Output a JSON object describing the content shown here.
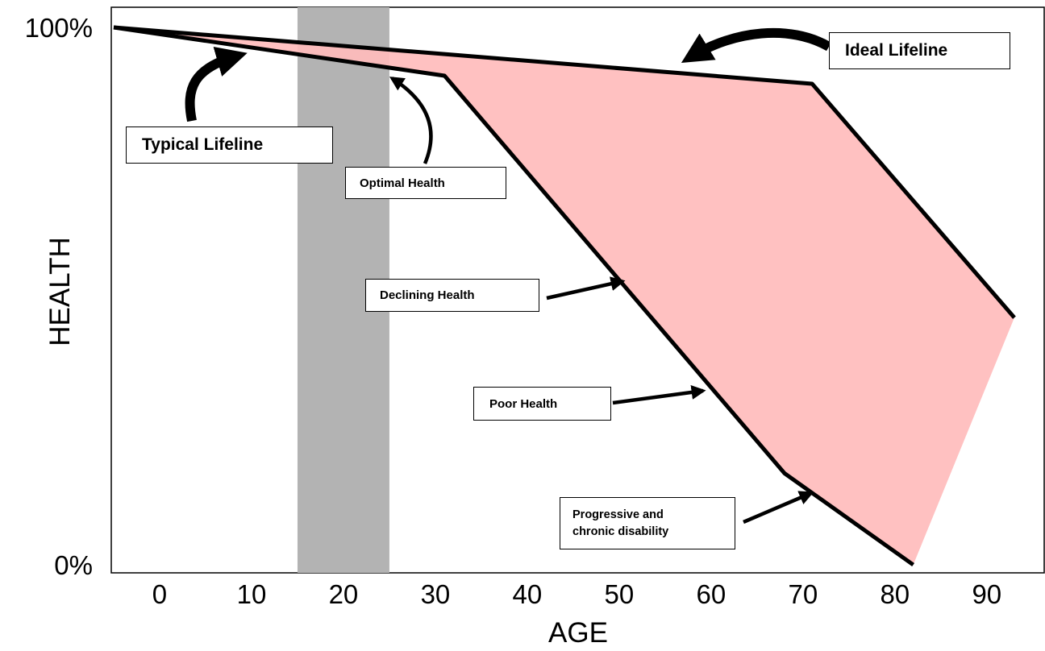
{
  "chart_data": {
    "type": "area",
    "xlabel": "AGE",
    "ylabel": "HEALTH",
    "xlim": [
      -5,
      93
    ],
    "ylim": [
      0,
      100
    ],
    "x_ticks": [
      0,
      10,
      20,
      30,
      40,
      50,
      60,
      70,
      80,
      90
    ],
    "y_ticks": [
      {
        "value": 100,
        "label": "100%"
      },
      {
        "value": 0,
        "label": "0%"
      }
    ],
    "highlight_band": {
      "x": [
        15,
        25
      ],
      "color": "#b3b3b3"
    },
    "fill_color": "#ffbcbc",
    "line_color": "#000000",
    "series": [
      {
        "name": "Ideal Lifeline",
        "x": [
          -5,
          71,
          93
        ],
        "y": [
          100,
          89.5,
          46
        ]
      },
      {
        "name": "Typical Lifeline",
        "x": [
          -5,
          31,
          68,
          82
        ],
        "y": [
          100,
          91,
          17,
          0
        ]
      }
    ],
    "annotations": [
      {
        "text": "Ideal Lifeline"
      },
      {
        "text": "Typical Lifeline"
      },
      {
        "text": "Optimal Health"
      },
      {
        "text": "Declining Health"
      },
      {
        "text": "Poor Health"
      },
      {
        "text": "Progressive and",
        "text2": "chronic disability"
      }
    ]
  }
}
